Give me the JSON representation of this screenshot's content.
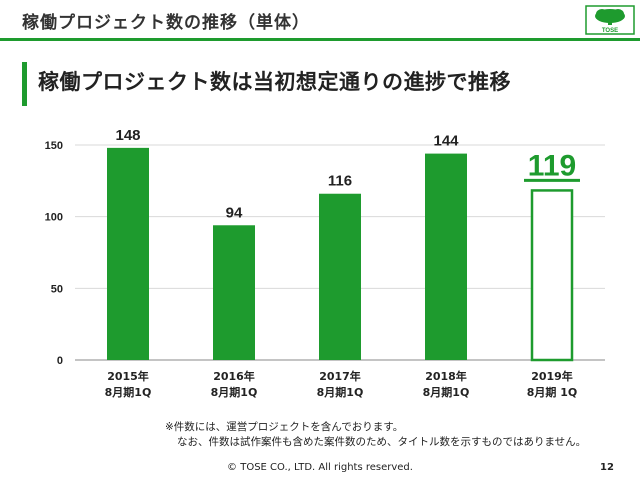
{
  "header": {
    "title": "稼働プロジェクト数の推移（単体）",
    "logo_text": "TOSE"
  },
  "heading": "稼働プロジェクト数は当初想定通りの進捗で推移",
  "colors": {
    "accent": "#1e9b2e",
    "text": "#222222"
  },
  "chart_data": {
    "type": "bar",
    "categories": [
      "2015年\n8月期1Q",
      "2016年\n8月期1Q",
      "2017年\n8月期1Q",
      "2018年\n8月期1Q",
      "2019年\n8月期 1Q"
    ],
    "values": [
      148,
      94,
      116,
      144,
      119
    ],
    "highlight_last": true,
    "yticks": [
      0,
      50,
      100,
      150
    ],
    "ylim": [
      0,
      150
    ],
    "title": "",
    "xlabel": "",
    "ylabel": ""
  },
  "note": {
    "line1": "※件数には、運営プロジェクトを含んでおります。",
    "line2": "なお、件数は試作案件も含めた案件数のため、タイトル数を示すものではありません。"
  },
  "footer": {
    "copyright": "© TOSE CO., LTD. All rights reserved.",
    "page": "12"
  }
}
